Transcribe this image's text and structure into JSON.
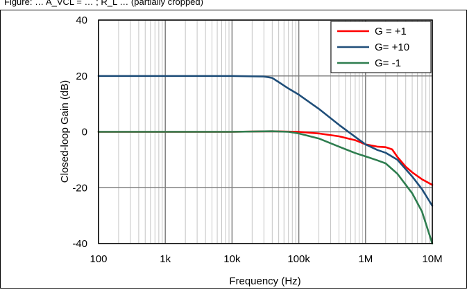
{
  "caption": "Figure: … A_VCL = … ; R_L … (partially cropped)",
  "chart_data": {
    "type": "line",
    "title": "",
    "xlabel": "Frequency (Hz)",
    "ylabel": "Closed-loop Gain (dB)",
    "xscale": "log",
    "xlim": [
      100,
      10000000
    ],
    "ylim": [
      -40,
      40
    ],
    "x_ticks": [
      100,
      1000,
      10000,
      100000,
      1000000,
      10000000
    ],
    "x_tick_labels": [
      "100",
      "1k",
      "10k",
      "100k",
      "1M",
      "10M"
    ],
    "y_ticks": [
      -40,
      -20,
      0,
      20,
      40
    ],
    "y_tick_labels": [
      "-40",
      "-20",
      "0",
      "20",
      "40"
    ],
    "grid": true,
    "legend_position": "top-right",
    "series": [
      {
        "name": "G = +1",
        "color": "#ff0000",
        "x": [
          100,
          1000,
          10000,
          40000,
          100000,
          200000,
          400000,
          700000,
          1000000,
          1500000,
          2000000,
          2500000,
          3000000,
          4000000,
          5000000,
          7000000,
          10000000
        ],
        "y": [
          0,
          0,
          0,
          0.2,
          0,
          -0.6,
          -1.6,
          -3,
          -4.5,
          -5.3,
          -5.5,
          -6.3,
          -9,
          -12.5,
          -14.5,
          -17,
          -19
        ]
      },
      {
        "name": "G= +10",
        "color": "#1f4e79",
        "x": [
          100,
          1000,
          10000,
          30000,
          40000,
          50000,
          70000,
          100000,
          200000,
          400000,
          700000,
          1000000,
          1500000,
          2000000,
          3000000,
          5000000,
          7000000,
          10000000
        ],
        "y": [
          20,
          20,
          20,
          19.8,
          19.3,
          17.8,
          15.5,
          13.3,
          8.2,
          2.5,
          -1.8,
          -4.5,
          -6.5,
          -7.5,
          -10,
          -16,
          -20.5,
          -26.5
        ]
      },
      {
        "name": "G= -1",
        "color": "#2e7d4f",
        "x": [
          100,
          1000,
          10000,
          40000,
          70000,
          100000,
          200000,
          400000,
          700000,
          1000000,
          1500000,
          2000000,
          3000000,
          5000000,
          7000000,
          10000000
        ],
        "y": [
          0,
          0,
          0,
          0.2,
          0,
          -0.6,
          -2.4,
          -5.3,
          -7.6,
          -8.8,
          -10.2,
          -11.3,
          -15,
          -22,
          -28.5,
          -40
        ]
      }
    ]
  }
}
